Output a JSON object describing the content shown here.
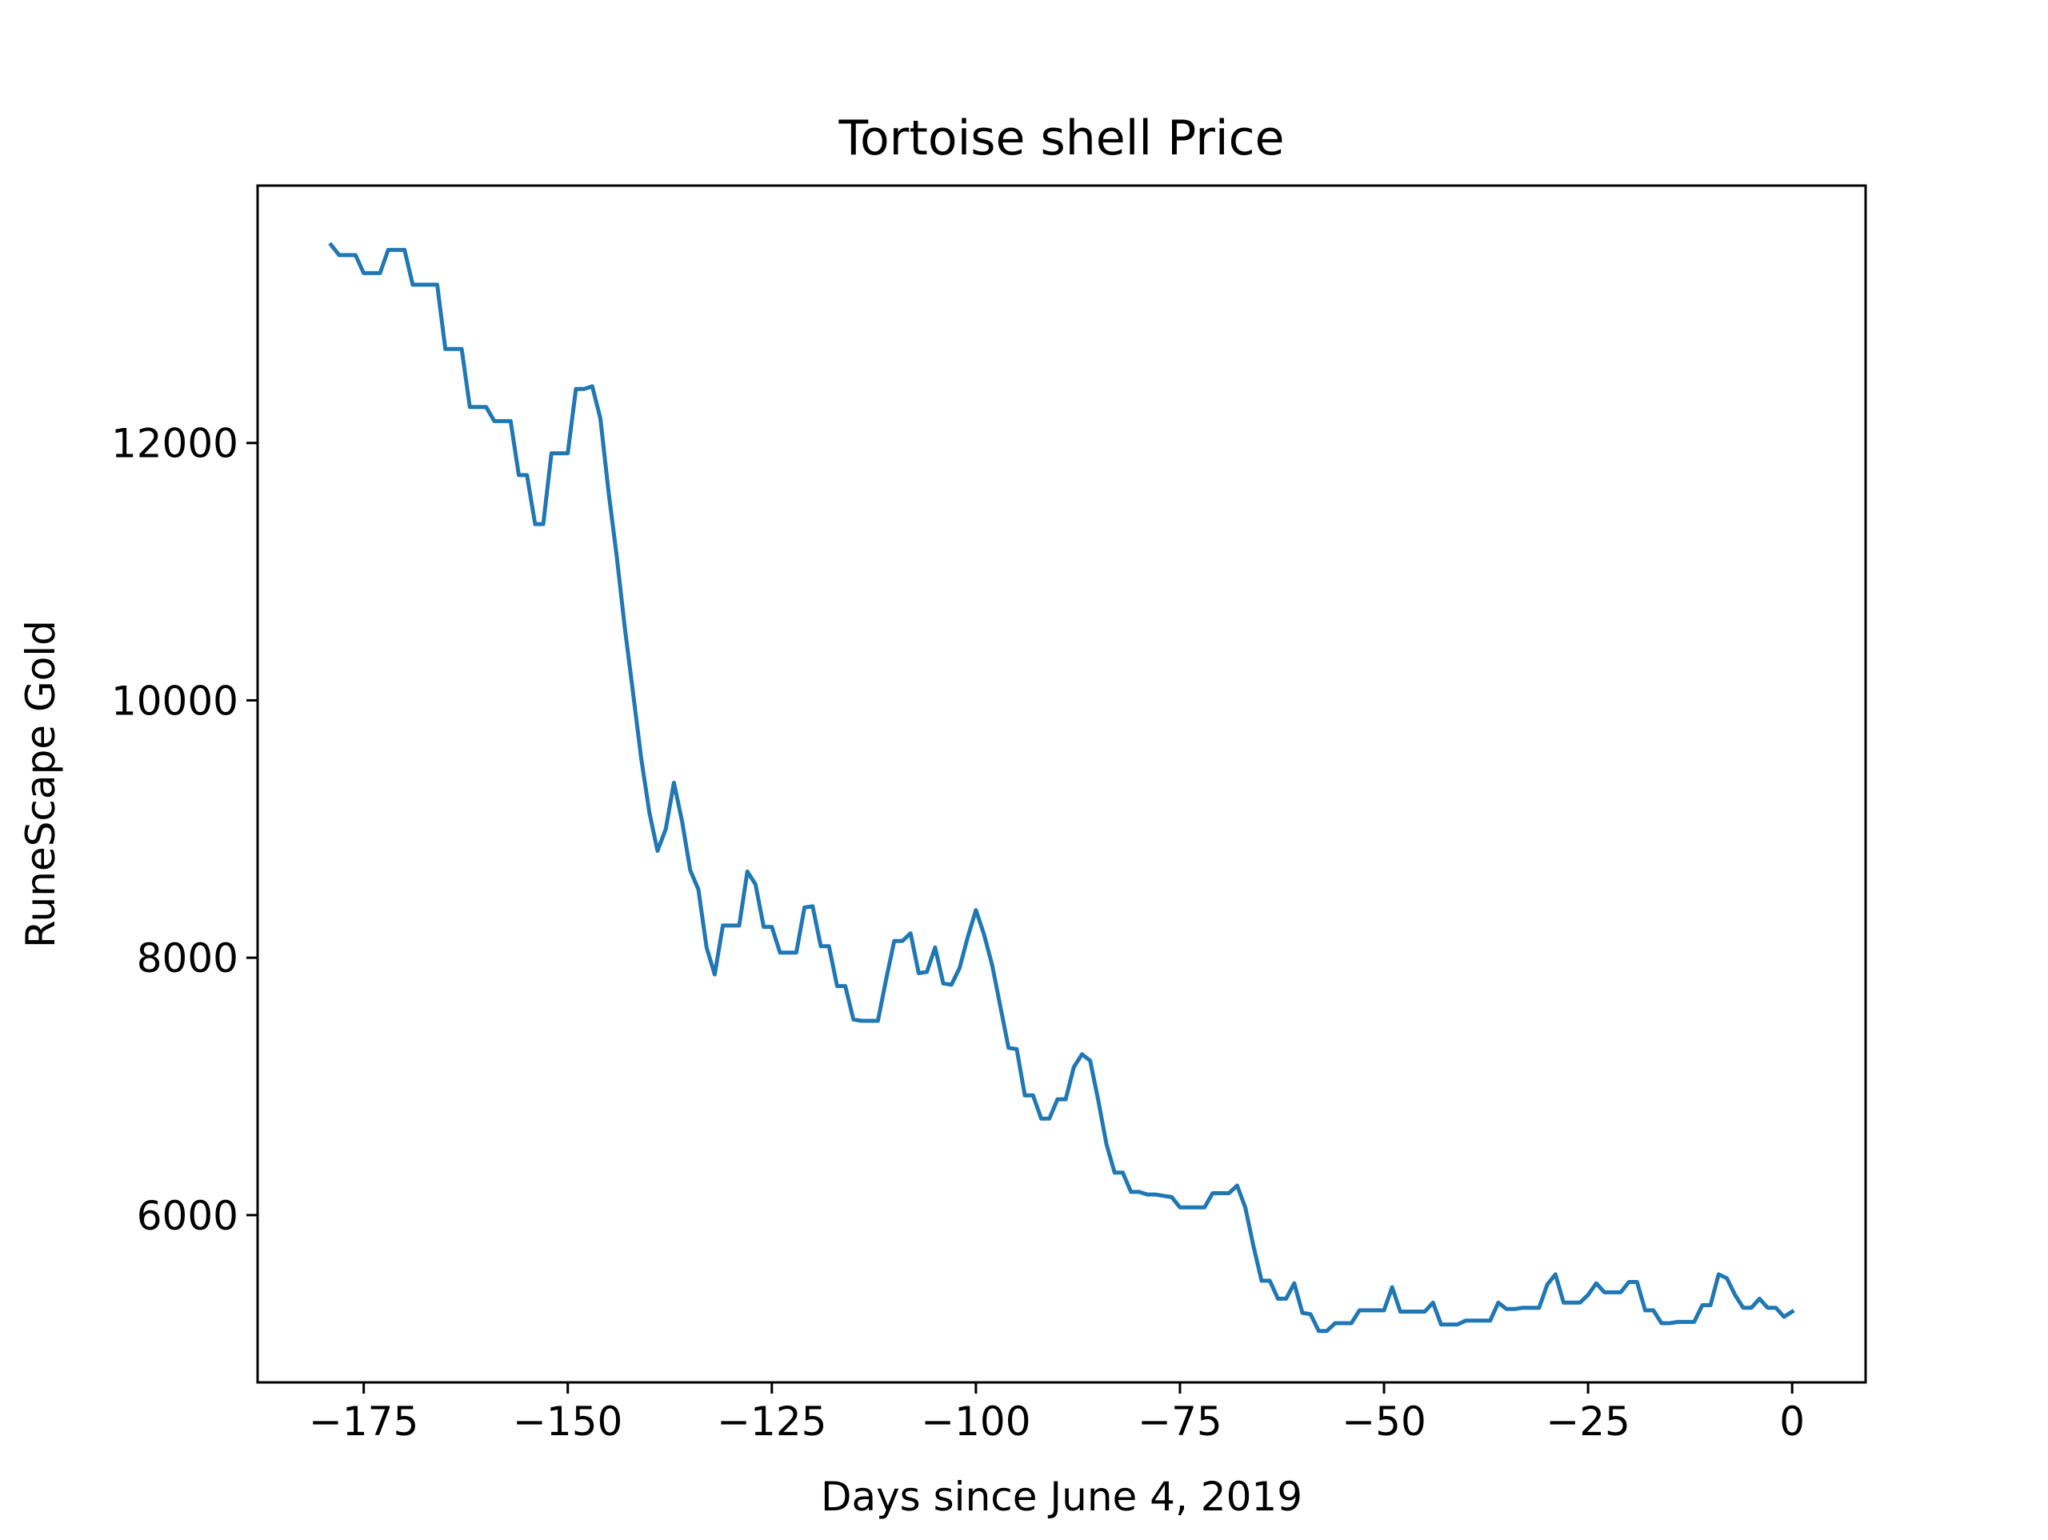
{
  "chart_data": {
    "type": "line",
    "title": "Tortoise shell Price",
    "xlabel": "Days since June 4, 2019",
    "ylabel": "RuneScape Gold",
    "xlim": [
      -188,
      9
    ],
    "ylim": [
      4700,
      14000
    ],
    "xticks": [
      -175,
      -150,
      -125,
      -100,
      -75,
      -50,
      -25,
      0
    ],
    "xtick_labels": [
      "−175",
      "−150",
      "−125",
      "−100",
      "−75",
      "−50",
      "−25",
      "0"
    ],
    "yticks": [
      6000,
      8000,
      10000,
      12000
    ],
    "ytick_labels": [
      "6000",
      "8000",
      "10000",
      "12000"
    ],
    "grid": false,
    "legend": "none",
    "series_color": "#1f77b4",
    "series": [
      {
        "x": [
          -179,
          -178,
          -177,
          -176,
          -175,
          -174,
          -173,
          -172,
          -171,
          -170,
          -169,
          -168,
          -167,
          -166,
          -165,
          -164,
          -163,
          -162,
          -161,
          -160,
          -159,
          -158,
          -157,
          -156,
          -155,
          -154,
          -153,
          -152,
          -151,
          -150,
          -149,
          -148,
          -147,
          -146,
          -145,
          -144,
          -143,
          -142,
          -141,
          -140,
          -139,
          -138,
          -137,
          -136,
          -135,
          -134,
          -133,
          -132,
          -131,
          -130,
          -129,
          -128,
          -127,
          -126,
          -125,
          -124,
          -123,
          -122,
          -121,
          -120,
          -119,
          -118,
          -117,
          -116,
          -115,
          -114,
          -113,
          -112,
          -111,
          -110,
          -109,
          -108,
          -107,
          -106,
          -105,
          -104,
          -103,
          -102,
          -101,
          -100,
          -99,
          -98,
          -97,
          -96,
          -95,
          -94,
          -93,
          -92,
          -91,
          -90,
          -89,
          -88,
          -87,
          -86,
          -85,
          -84,
          -83,
          -82,
          -81,
          -80,
          -79,
          -78,
          -77,
          -76,
          -75,
          -74,
          -73,
          -72,
          -71,
          -70,
          -69,
          -68,
          -67,
          -66,
          -65,
          -64,
          -63,
          -62,
          -61,
          -60,
          -59,
          -58,
          -57,
          -56,
          -55,
          -54,
          -53,
          -52,
          -51,
          -50,
          -49,
          -48,
          -47,
          -46,
          -45,
          -44,
          -43,
          -42,
          -41,
          -40,
          -39,
          -38,
          -37,
          -36,
          -35,
          -34,
          -33,
          -32,
          -31,
          -30,
          -29,
          -28,
          -27,
          -26,
          -25,
          -24,
          -23,
          -22,
          -21,
          -20,
          -19,
          -18,
          -17,
          -16,
          -15,
          -14,
          -13,
          -12,
          -11,
          -10,
          -9,
          -8,
          -7,
          -6,
          -5,
          -4,
          -3,
          -2,
          -1,
          0
        ],
        "y": [
          13540,
          13460,
          13460,
          13460,
          13320,
          13320,
          13320,
          13500,
          13500,
          13500,
          13230,
          13230,
          13230,
          13230,
          12730,
          12730,
          12730,
          12280,
          12280,
          12280,
          12170,
          12170,
          12170,
          11750,
          11750,
          11370,
          11370,
          11920,
          11920,
          11920,
          12420,
          12420,
          12440,
          12190,
          11620,
          11120,
          10560,
          10060,
          9550,
          9130,
          8830,
          9000,
          9360,
          9060,
          8680,
          8530,
          8080,
          7870,
          8250,
          8250,
          8250,
          8670,
          8570,
          8240,
          8240,
          8040,
          8040,
          8040,
          8390,
          8400,
          8090,
          8090,
          7780,
          7780,
          7520,
          7510,
          7510,
          7510,
          7830,
          8130,
          8130,
          8190,
          7880,
          7890,
          8080,
          7800,
          7790,
          7920,
          8160,
          8370,
          8180,
          7940,
          7620,
          7300,
          7290,
          6930,
          6930,
          6750,
          6750,
          6900,
          6900,
          7150,
          7250,
          7200,
          6890,
          6550,
          6330,
          6330,
          6180,
          6180,
          6160,
          6160,
          6150,
          6140,
          6060,
          6060,
          6060,
          6060,
          6170,
          6170,
          6170,
          6230,
          6060,
          5760,
          5490,
          5490,
          5350,
          5350,
          5470,
          5240,
          5230,
          5100,
          5100,
          5160,
          5160,
          5160,
          5260,
          5260,
          5260,
          5260,
          5440,
          5250,
          5250,
          5250,
          5250,
          5320,
          5150,
          5150,
          5150,
          5180,
          5180,
          5180,
          5180,
          5320,
          5270,
          5270,
          5280,
          5280,
          5280,
          5460,
          5540,
          5320,
          5320,
          5320,
          5380,
          5470,
          5400,
          5400,
          5400,
          5480,
          5480,
          5260,
          5260,
          5160,
          5160,
          5170,
          5170,
          5170,
          5300,
          5300,
          5540,
          5510,
          5380,
          5280,
          5280,
          5350,
          5280,
          5280,
          5210,
          5250
        ]
      }
    ]
  }
}
